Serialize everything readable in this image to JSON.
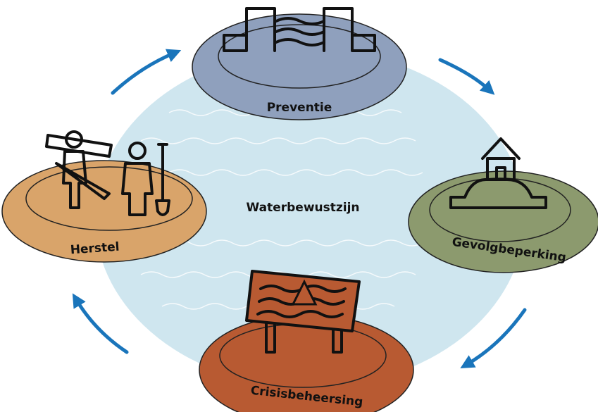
{
  "center": {
    "label": "Waterbewustzijn"
  },
  "nodes": [
    {
      "label": "Preventie"
    },
    {
      "label": "Gevolgbeperking"
    },
    {
      "label": "Crisisbeheersing"
    },
    {
      "label": "Herstel"
    }
  ]
}
